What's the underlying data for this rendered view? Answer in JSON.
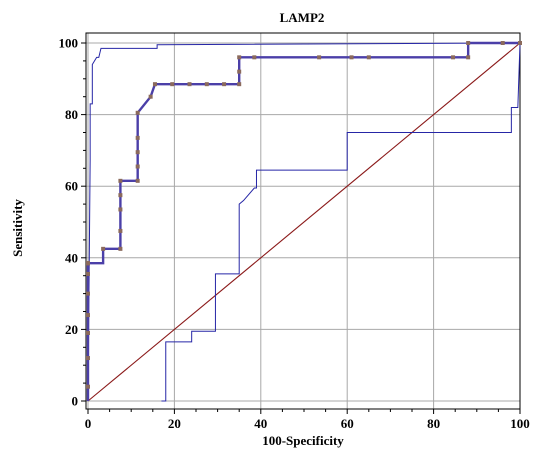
{
  "chart_data": {
    "type": "line",
    "title": "LAMP2",
    "xlabel": "100-Specificity",
    "ylabel": "Sensitivity",
    "xlim": [
      0,
      100
    ],
    "ylim": [
      0,
      100
    ],
    "x_ticks": [
      "0",
      "20",
      "40",
      "60",
      "80",
      "100"
    ],
    "y_ticks": [
      "0",
      "20",
      "40",
      "60",
      "80",
      "100"
    ],
    "grid": true,
    "colors": {
      "roc": "#4b3fa8",
      "markers": "#8b6a5c",
      "ci": "#2626a6",
      "reference": "#8b1a1a"
    },
    "series": [
      {
        "role": "roc",
        "x": [
          0,
          0,
          3.5,
          3.5,
          7.5,
          7.5,
          11.5,
          11.5,
          14.5,
          15.5,
          35,
          35,
          88,
          88,
          100
        ],
        "y": [
          0,
          38.5,
          38.5,
          42.5,
          42.5,
          61.5,
          61.5,
          80.5,
          85,
          88.5,
          88.5,
          96,
          96,
          100,
          100
        ],
        "marker_x": [
          0,
          0,
          0,
          0,
          0,
          0,
          0,
          0,
          0,
          0,
          0,
          0,
          3.5,
          7.5,
          7.5,
          7.5,
          7.5,
          7.5,
          11.5,
          11.5,
          11.5,
          11.5,
          11.5,
          14.5,
          15.5,
          19.5,
          23.5,
          27.5,
          31.5,
          35,
          35,
          35,
          38.5,
          53.5,
          61,
          65,
          84.5,
          88,
          88,
          96,
          100
        ],
        "marker_y": [
          4,
          12,
          19,
          24,
          30,
          35.5,
          38.5,
          38.5,
          38.5,
          38.5,
          38.5,
          38.5,
          42.5,
          42.5,
          47.5,
          53.5,
          57.5,
          61.5,
          61.5,
          65.5,
          69.5,
          73.5,
          80.5,
          85,
          88.5,
          88.5,
          88.5,
          88.5,
          88.5,
          88.5,
          92,
          96,
          96,
          96,
          96,
          96,
          96,
          96,
          100,
          100,
          100
        ]
      },
      {
        "role": "ci-upper",
        "x": [
          0,
          0.5,
          0.5,
          1,
          1,
          2,
          2.5,
          3,
          16,
          16,
          100
        ],
        "y": [
          0,
          67.5,
          83,
          83,
          94,
          96,
          96,
          98.5,
          98.5,
          99.5,
          100
        ],
        "step": false
      },
      {
        "role": "ci-lower",
        "x": [
          17,
          18,
          18,
          24,
          24,
          29.5,
          29.5,
          35,
          35,
          36,
          38.5,
          39,
          39,
          60,
          60,
          98,
          98,
          99.5,
          100
        ],
        "y": [
          0,
          0,
          16.5,
          16.5,
          19.5,
          19.5,
          35.5,
          35.5,
          55,
          56,
          59.5,
          59.5,
          64.5,
          64.5,
          75,
          75,
          82,
          82,
          100
        ],
        "step": false
      },
      {
        "role": "reference",
        "x": [
          0,
          100
        ],
        "y": [
          0,
          100
        ]
      }
    ]
  }
}
